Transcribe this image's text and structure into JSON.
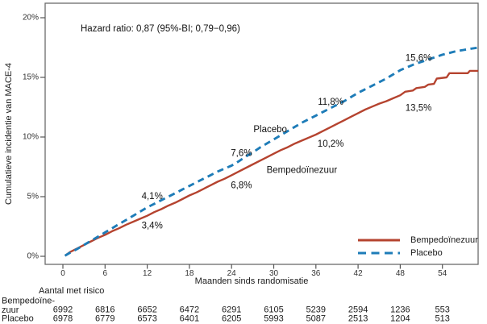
{
  "chart_data": {
    "type": "line",
    "subtype": "cumulative-incidence-kaplan-meier",
    "annotation": "Hazard ratio: 0,87 (95%-BI; 0,79−0,96)",
    "xlabel": "Maanden sinds randomisatie",
    "ylabel": "Cumulatieve incidentie van MACE-4",
    "x_ticks": [
      0,
      6,
      12,
      18,
      24,
      30,
      36,
      42,
      48,
      54
    ],
    "y_ticks": [
      {
        "label": "0%",
        "value": 0
      },
      {
        "label": "5%",
        "value": 5
      },
      {
        "label": "10%",
        "value": 10
      },
      {
        "label": "15%",
        "value": 15
      },
      {
        "label": "20%",
        "value": 20
      }
    ],
    "xlim": [
      -2.5,
      59.2
    ],
    "ylim": [
      -0.7,
      21.2
    ],
    "grid": false,
    "legend_position": "lower right",
    "frame_color": "#6b6b6b",
    "tick_color": "#555555",
    "series": [
      {
        "name": "Bempedoïnezuur",
        "color": "#b5432f",
        "style": "solid",
        "milestones": {
          "12": 3.4,
          "24": 6.8,
          "36": 10.2,
          "48": 13.5
        },
        "points": [
          [
            0.3,
            0.05
          ],
          [
            1,
            0.35
          ],
          [
            2,
            0.65
          ],
          [
            3,
            0.95
          ],
          [
            4,
            1.25
          ],
          [
            5,
            1.55
          ],
          [
            6,
            1.8
          ],
          [
            7,
            2.1
          ],
          [
            8,
            2.35
          ],
          [
            9,
            2.65
          ],
          [
            10,
            2.9
          ],
          [
            11,
            3.15
          ],
          [
            12,
            3.4
          ],
          [
            13,
            3.7
          ],
          [
            14,
            3.95
          ],
          [
            15,
            4.25
          ],
          [
            16,
            4.5
          ],
          [
            17,
            4.8
          ],
          [
            18,
            5.1
          ],
          [
            19,
            5.35
          ],
          [
            20,
            5.65
          ],
          [
            21,
            5.95
          ],
          [
            22,
            6.25
          ],
          [
            23,
            6.5
          ],
          [
            24,
            6.8
          ],
          [
            25,
            7.1
          ],
          [
            26,
            7.4
          ],
          [
            27,
            7.7
          ],
          [
            28,
            8.0
          ],
          [
            29,
            8.3
          ],
          [
            30,
            8.6
          ],
          [
            31,
            8.9
          ],
          [
            32,
            9.15
          ],
          [
            33,
            9.45
          ],
          [
            34,
            9.7
          ],
          [
            35,
            9.95
          ],
          [
            36,
            10.2
          ],
          [
            37,
            10.5
          ],
          [
            38,
            10.8
          ],
          [
            39,
            11.1
          ],
          [
            40,
            11.4
          ],
          [
            41,
            11.7
          ],
          [
            42,
            12.0
          ],
          [
            43,
            12.3
          ],
          [
            44,
            12.55
          ],
          [
            45,
            12.8
          ],
          [
            46,
            13.0
          ],
          [
            47,
            13.25
          ],
          [
            48,
            13.5
          ],
          [
            48.7,
            13.8
          ],
          [
            49.8,
            13.9
          ],
          [
            50.3,
            14.1
          ],
          [
            51.5,
            14.2
          ],
          [
            52,
            14.4
          ],
          [
            52.8,
            14.45
          ],
          [
            53.2,
            14.9
          ],
          [
            54.6,
            15.0
          ],
          [
            55,
            15.35
          ],
          [
            57.6,
            15.35
          ],
          [
            57.9,
            15.55
          ],
          [
            59.1,
            15.55
          ]
        ]
      },
      {
        "name": "Placebo",
        "color": "#1e7cb8",
        "style": "dashed",
        "milestones": {
          "12": 4.1,
          "24": 7.6,
          "36": 11.8,
          "48": 15.6
        },
        "points": [
          [
            0.3,
            0.05
          ],
          [
            1,
            0.3
          ],
          [
            2,
            0.6
          ],
          [
            3,
            0.95
          ],
          [
            4,
            1.3
          ],
          [
            5,
            1.65
          ],
          [
            6,
            2.0
          ],
          [
            7,
            2.35
          ],
          [
            8,
            2.7
          ],
          [
            9,
            3.05
          ],
          [
            10,
            3.4
          ],
          [
            11,
            3.75
          ],
          [
            12,
            4.1
          ],
          [
            13,
            4.4
          ],
          [
            14,
            4.7
          ],
          [
            15,
            5.0
          ],
          [
            16,
            5.3
          ],
          [
            17,
            5.6
          ],
          [
            18,
            5.9
          ],
          [
            19,
            6.2
          ],
          [
            20,
            6.5
          ],
          [
            21,
            6.8
          ],
          [
            22,
            7.1
          ],
          [
            23,
            7.35
          ],
          [
            24,
            7.6
          ],
          [
            25,
            7.95
          ],
          [
            26,
            8.35
          ],
          [
            27,
            8.7
          ],
          [
            28,
            9.1
          ],
          [
            29,
            9.45
          ],
          [
            30,
            9.8
          ],
          [
            31,
            10.15
          ],
          [
            32,
            10.5
          ],
          [
            33,
            10.85
          ],
          [
            34,
            11.2
          ],
          [
            35,
            11.5
          ],
          [
            36,
            11.8
          ],
          [
            37,
            12.1
          ],
          [
            38,
            12.4
          ],
          [
            39,
            12.7
          ],
          [
            40,
            13.0
          ],
          [
            41,
            13.35
          ],
          [
            42,
            13.7
          ],
          [
            43,
            14.0
          ],
          [
            44,
            14.3
          ],
          [
            45,
            14.6
          ],
          [
            46,
            14.9
          ],
          [
            47,
            15.25
          ],
          [
            48,
            15.6
          ],
          [
            49,
            15.85
          ],
          [
            50,
            16.1
          ],
          [
            51,
            16.3
          ],
          [
            52,
            16.5
          ],
          [
            53,
            16.7
          ],
          [
            54,
            16.9
          ],
          [
            55,
            17.05
          ],
          [
            56,
            17.2
          ],
          [
            57,
            17.3
          ],
          [
            58,
            17.4
          ],
          [
            59.1,
            17.5
          ]
        ]
      }
    ],
    "point_labels": [
      {
        "text": "3,4%",
        "x": 12.7,
        "y": 2.55,
        "series": "Bempedoïnezuur"
      },
      {
        "text": "4,1%",
        "x": 12.7,
        "y": 5.0,
        "series": "Placebo"
      },
      {
        "text": "6,8%",
        "x": 25.4,
        "y": 5.9,
        "series": "Bempedoïnezuur"
      },
      {
        "text": "7,6%",
        "x": 25.4,
        "y": 8.6,
        "series": "Placebo"
      },
      {
        "text": "10,2%",
        "x": 38.1,
        "y": 9.4,
        "series": "Bempedoïnezuur"
      },
      {
        "text": "11,8%",
        "x": 38.1,
        "y": 12.9,
        "series": "Placebo"
      },
      {
        "text": "13,5%",
        "x": 50.6,
        "y": 12.4,
        "series": "Bempedoïnezuur"
      },
      {
        "text": "15,6%",
        "x": 50.6,
        "y": 16.6,
        "series": "Placebo"
      }
    ],
    "curve_labels": [
      {
        "text": "Placebo",
        "x": 29.5,
        "y": 10.6,
        "color": "#1e7cb8"
      },
      {
        "text": "Bempedoïnezuur",
        "x": 34.0,
        "y": 7.2,
        "color": "#b5432f"
      }
    ],
    "legend": {
      "items": [
        {
          "label": "Bempedoïnezuur",
          "style": "solid",
          "color": "#b5432f"
        },
        {
          "label": "Placebo",
          "style": "dashed",
          "color": "#1e7cb8"
        }
      ]
    }
  },
  "risk_table": {
    "title": "Aantal met risico",
    "columns": [
      0,
      6,
      12,
      18,
      24,
      30,
      36,
      42,
      48,
      54
    ],
    "rows": [
      {
        "label": "Bempedoïne-zuur",
        "label_lines": [
          "Bempedoïne-",
          "zuur"
        ],
        "color": "#b5432f",
        "values": [
          "6992",
          "6816",
          "6652",
          "6472",
          "6291",
          "6105",
          "5239",
          "2594",
          "1236",
          "553"
        ]
      },
      {
        "label": "Placebo",
        "label_lines": [
          "Placebo"
        ],
        "color": "#1e7cb8",
        "values": [
          "6978",
          "6779",
          "6573",
          "6401",
          "6205",
          "5993",
          "5087",
          "2513",
          "1204",
          "513"
        ]
      }
    ]
  }
}
